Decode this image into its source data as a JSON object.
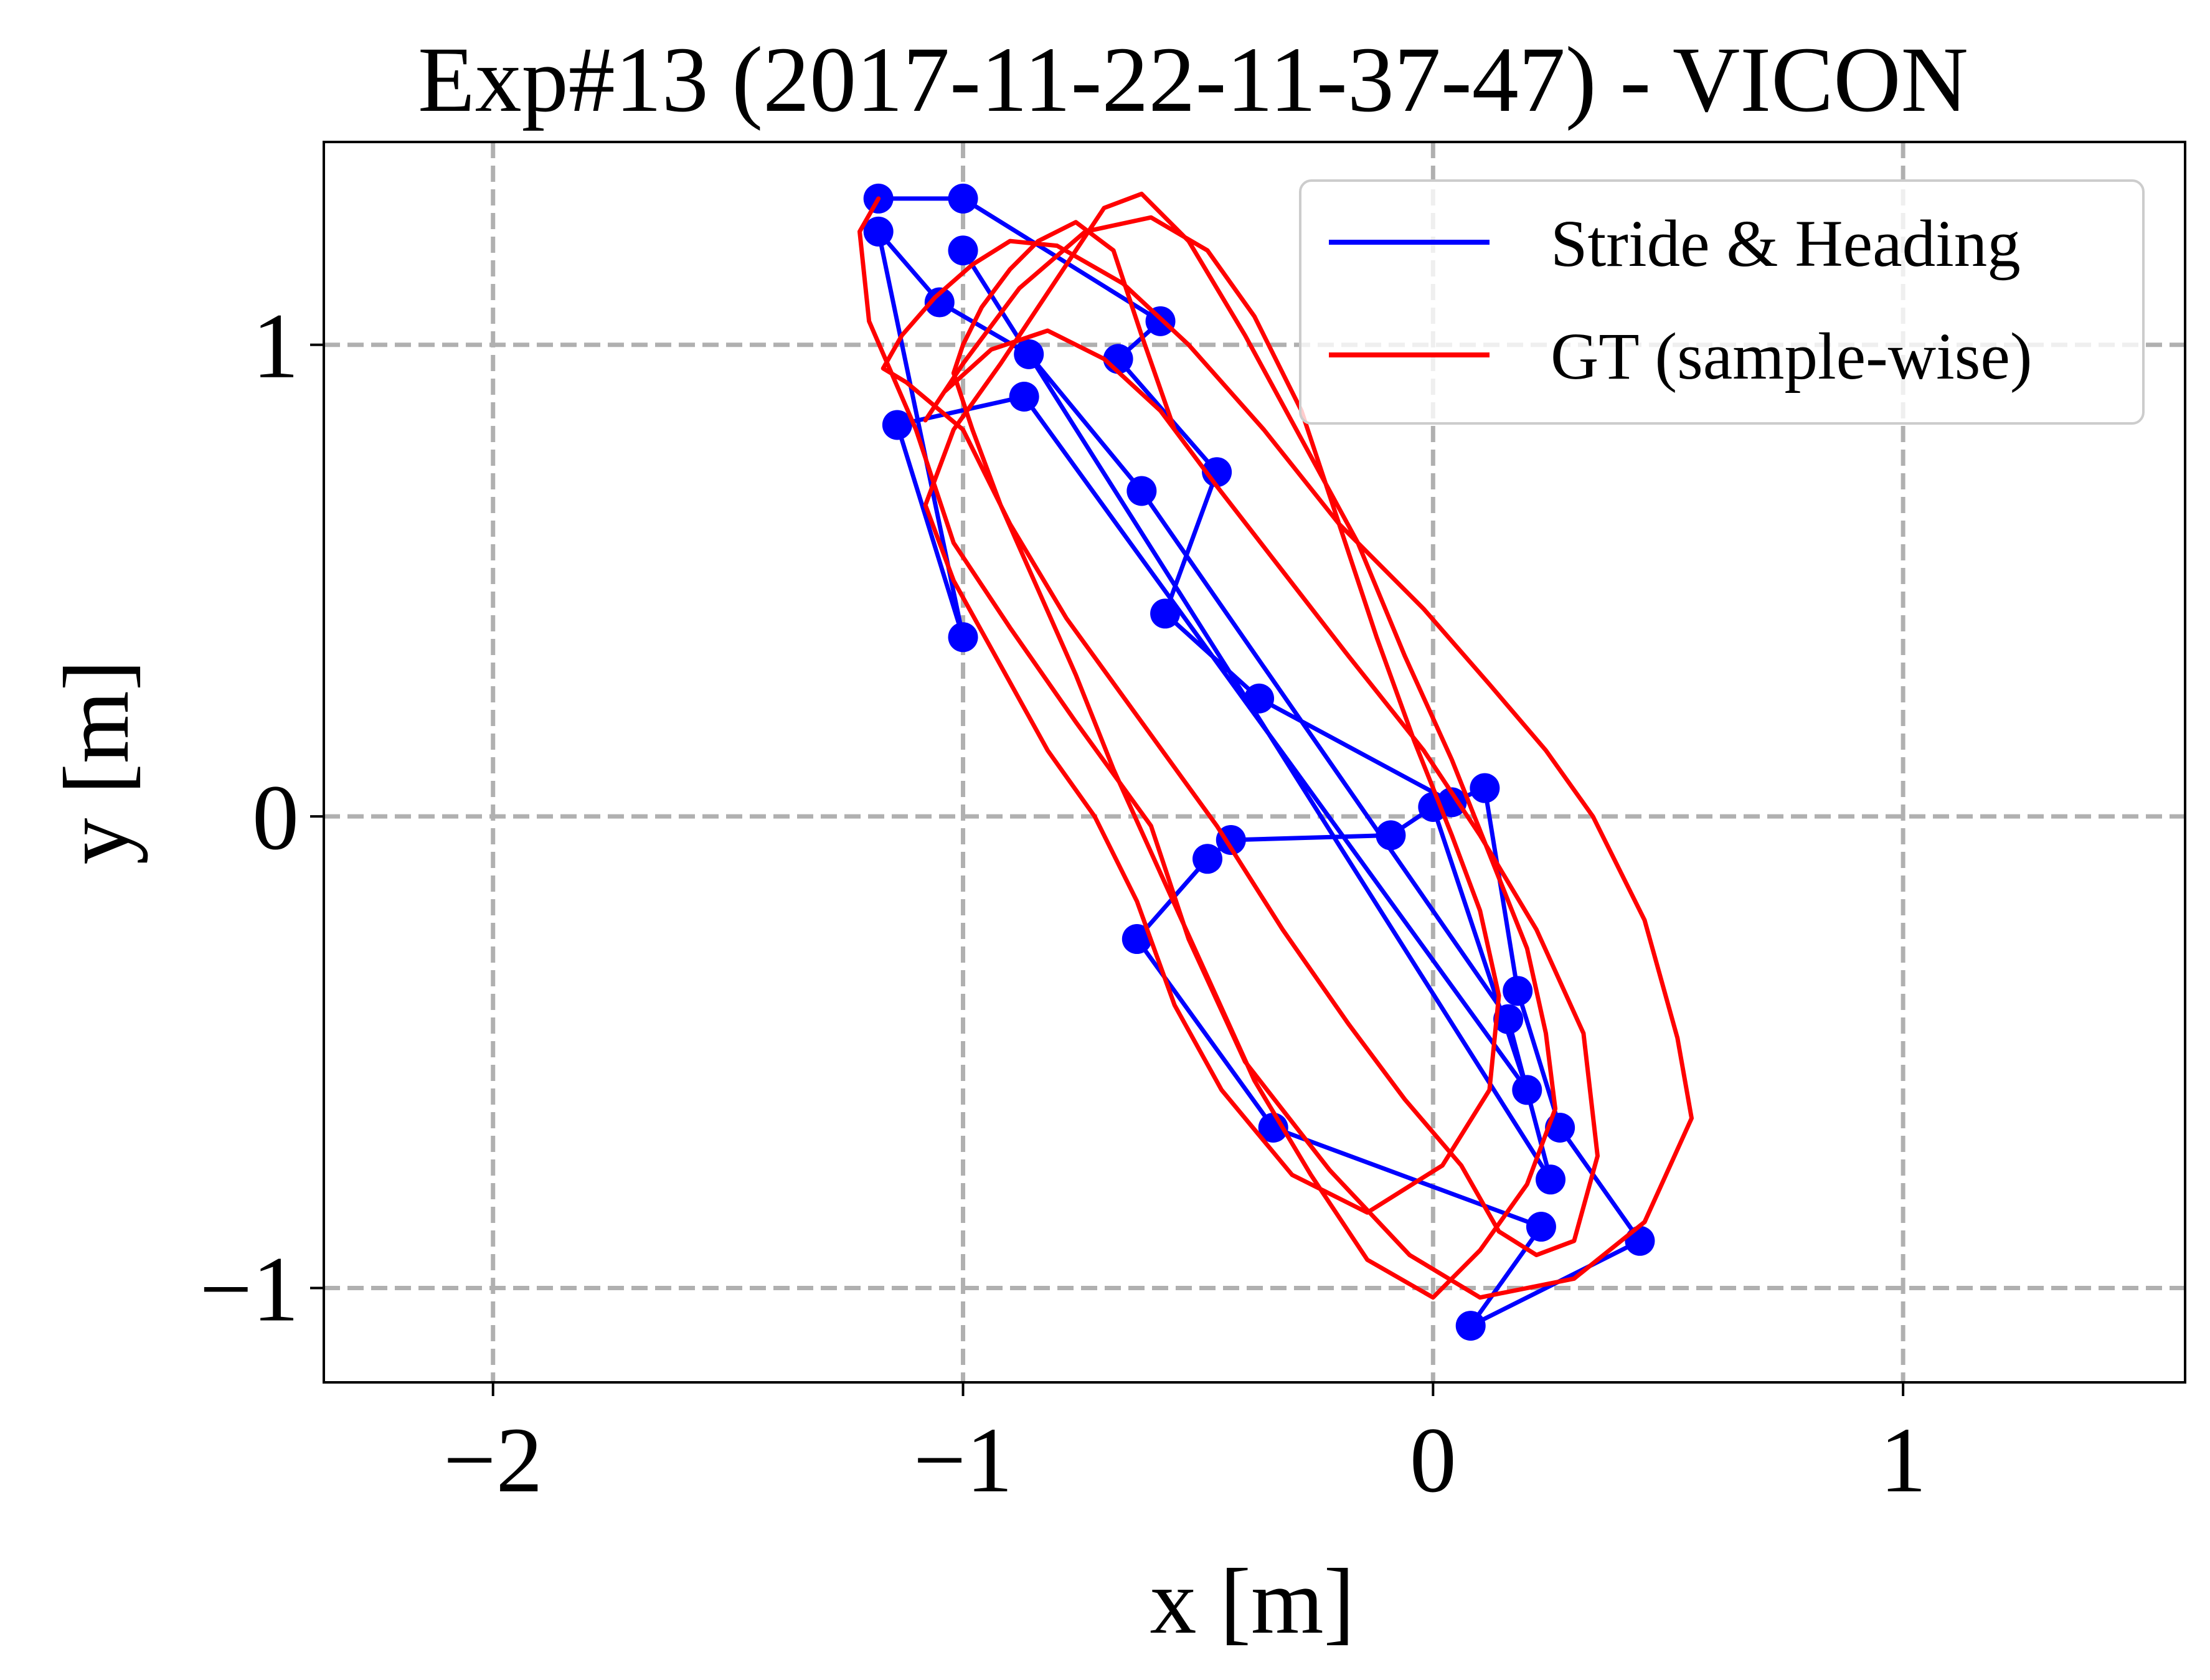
{
  "chart_data": {
    "type": "line",
    "title": "Exp#13 (2017-11-22-11-37-47) - VICON",
    "xlabel": "x [m]",
    "ylabel": "y [m]",
    "xlim": [
      -2.36,
      1.6
    ],
    "ylim": [
      -1.2,
      1.43
    ],
    "xticks": [
      -2,
      -1,
      0,
      1
    ],
    "yticks": [
      -1,
      0,
      1
    ],
    "xtick_labels": [
      "−2",
      "−1",
      "0",
      "1"
    ],
    "ytick_labels": [
      "−1",
      "0",
      "1"
    ],
    "grid": true,
    "legend_position": "top-right",
    "series": [
      {
        "name": "Stride & Heading",
        "color": "#0000ff",
        "style": "line-with-markers",
        "x": [
          -1.18,
          -1.0,
          -0.58,
          -0.67,
          -0.46,
          -0.57,
          -0.37,
          0.04,
          0.11,
          0.18,
          0.27,
          0.44,
          0.08,
          0.23,
          -0.34,
          -0.63,
          -0.48,
          -0.43,
          -0.09,
          0.0,
          0.2,
          -0.87,
          -1.14,
          -1.0,
          -1.18,
          -1.05,
          -0.86,
          -0.62,
          0.16,
          0.25,
          -1.0
        ],
        "y": [
          1.31,
          1.31,
          1.05,
          0.97,
          0.73,
          0.43,
          0.25,
          0.03,
          0.06,
          -0.37,
          -0.66,
          -0.9,
          -1.08,
          -0.87,
          -0.66,
          -0.26,
          -0.09,
          -0.05,
          -0.04,
          0.02,
          -0.58,
          0.89,
          0.83,
          0.38,
          1.24,
          1.09,
          0.98,
          0.69,
          -0.43,
          -0.77,
          1.2
        ]
      },
      {
        "name": "GT (sample-wise)",
        "color": "#ff0000",
        "style": "line",
        "x": [
          -1.18,
          -1.22,
          -1.2,
          -1.1,
          -1.02,
          -0.9,
          -0.76,
          -0.6,
          -0.52,
          -0.4,
          -0.22,
          -0.05,
          0.1,
          0.3,
          0.45,
          0.55,
          0.52,
          0.45,
          0.34,
          0.24,
          0.12,
          -0.02,
          -0.2,
          -0.36,
          -0.52,
          -0.66,
          -0.8,
          -0.9,
          -0.98,
          -1.06,
          -1.13,
          -1.17,
          -1.12,
          -1.0,
          -0.9,
          -0.78,
          -0.62,
          -0.46,
          -0.32,
          -0.18,
          -0.06,
          0.06,
          0.14,
          0.22,
          0.3,
          0.35,
          0.32,
          0.22,
          0.1,
          -0.02,
          -0.18,
          -0.32,
          -0.46,
          -0.58,
          -0.7,
          -0.82,
          -0.94,
          -1.04,
          -1.08,
          -1.0,
          -0.88,
          -0.74,
          -0.6,
          -0.48,
          -0.38,
          -0.28,
          -0.2,
          -0.12,
          -0.04,
          0.04,
          0.1,
          0.14,
          0.12,
          0.02,
          -0.14,
          -0.3,
          -0.45,
          -0.55,
          -0.63,
          -0.72,
          -0.82,
          -0.92,
          -1.02,
          -1.08,
          -1.02,
          -0.92,
          -0.84,
          -0.76,
          -0.7,
          -0.62,
          -0.52,
          -0.4,
          -0.28,
          -0.16,
          -0.06,
          0.04,
          0.12,
          0.2,
          0.24,
          0.26,
          0.2,
          0.1,
          0.0,
          -0.14,
          -0.26,
          -0.38,
          -0.48,
          -0.58,
          -0.68,
          -0.76,
          -0.84,
          -0.92,
          -0.98,
          -1.02,
          -1.0,
          -0.96,
          -0.9,
          -0.84,
          -0.76,
          -0.68,
          -0.62,
          -0.55
        ],
        "y": [
          1.31,
          1.24,
          1.05,
          0.82,
          0.58,
          0.4,
          0.2,
          -0.02,
          -0.26,
          -0.52,
          -0.75,
          -0.93,
          -1.02,
          -0.98,
          -0.86,
          -0.64,
          -0.47,
          -0.22,
          0.0,
          0.14,
          0.28,
          0.44,
          0.62,
          0.82,
          1.0,
          1.13,
          1.21,
          1.22,
          1.17,
          1.1,
          1.02,
          0.95,
          0.92,
          0.82,
          0.62,
          0.42,
          0.2,
          -0.02,
          -0.24,
          -0.44,
          -0.6,
          -0.74,
          -0.88,
          -0.93,
          -0.9,
          -0.72,
          -0.46,
          -0.24,
          -0.04,
          0.14,
          0.34,
          0.52,
          0.7,
          0.86,
          0.97,
          1.03,
          0.99,
          0.9,
          0.84,
          0.96,
          1.12,
          1.24,
          1.27,
          1.2,
          1.06,
          0.86,
          0.62,
          0.38,
          0.16,
          -0.04,
          -0.2,
          -0.38,
          -0.58,
          -0.74,
          -0.84,
          -0.76,
          -0.58,
          -0.4,
          -0.18,
          0.0,
          0.14,
          0.32,
          0.5,
          0.66,
          0.82,
          0.96,
          1.08,
          1.2,
          1.29,
          1.32,
          1.22,
          1.02,
          0.8,
          0.58,
          0.34,
          0.12,
          -0.08,
          -0.28,
          -0.46,
          -0.62,
          -0.78,
          -0.92,
          -1.02,
          -0.94,
          -0.76,
          -0.56,
          -0.34,
          -0.12,
          0.1,
          0.3,
          0.48,
          0.66,
          0.82,
          0.94,
          1.0,
          1.08,
          1.16,
          1.22,
          1.26,
          1.2,
          1.02,
          0.82
        ]
      }
    ]
  }
}
